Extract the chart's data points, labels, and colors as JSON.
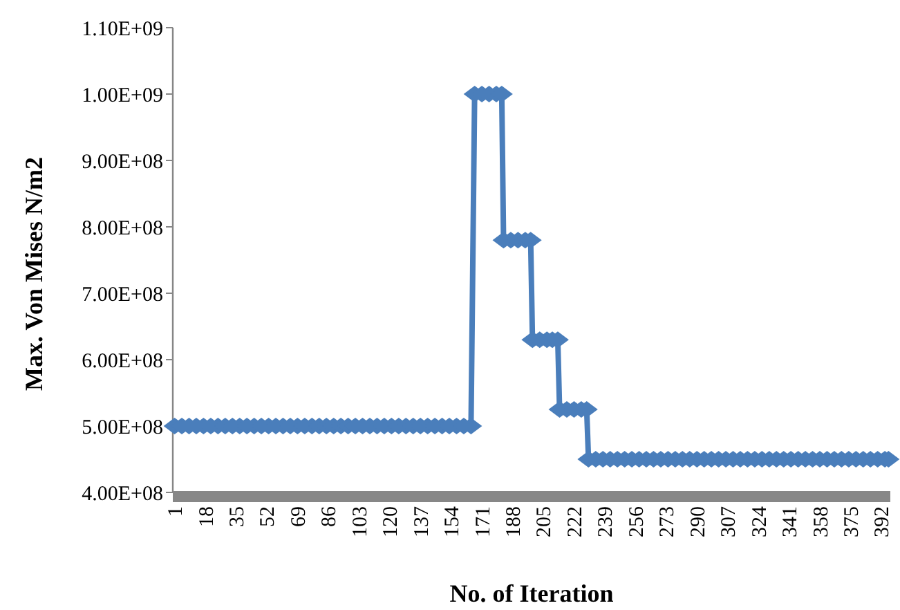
{
  "chart_data": {
    "type": "line",
    "xlabel": "No. of Iteration",
    "ylabel": "Max. Von Mises N/m2",
    "x": [
      1,
      5,
      9,
      13,
      17,
      21,
      25,
      29,
      33,
      37,
      41,
      45,
      49,
      53,
      57,
      61,
      65,
      69,
      73,
      77,
      81,
      85,
      89,
      93,
      97,
      101,
      105,
      109,
      113,
      117,
      121,
      125,
      129,
      133,
      137,
      141,
      145,
      149,
      153,
      157,
      161,
      165,
      167,
      171,
      175,
      179,
      182,
      183,
      187,
      191,
      195,
      198,
      199,
      203,
      207,
      210,
      213,
      214,
      218,
      222,
      226,
      229,
      230,
      234,
      238,
      242,
      246,
      250,
      254,
      258,
      262,
      266,
      270,
      274,
      278,
      282,
      286,
      290,
      294,
      298,
      302,
      306,
      310,
      314,
      318,
      322,
      326,
      330,
      334,
      338,
      342,
      346,
      350,
      354,
      358,
      362,
      366,
      370,
      374,
      378,
      382,
      386,
      390,
      394,
      396
    ],
    "series": [
      {
        "color": "#4a7ebb",
        "values": [
          500000000.0,
          500000000.0,
          500000000.0,
          500000000.0,
          500000000.0,
          500000000.0,
          500000000.0,
          500000000.0,
          500000000.0,
          500000000.0,
          500000000.0,
          500000000.0,
          500000000.0,
          500000000.0,
          500000000.0,
          500000000.0,
          500000000.0,
          500000000.0,
          500000000.0,
          500000000.0,
          500000000.0,
          500000000.0,
          500000000.0,
          500000000.0,
          500000000.0,
          500000000.0,
          500000000.0,
          500000000.0,
          500000000.0,
          500000000.0,
          500000000.0,
          500000000.0,
          500000000.0,
          500000000.0,
          500000000.0,
          500000000.0,
          500000000.0,
          500000000.0,
          500000000.0,
          500000000.0,
          500000000.0,
          500000000.0,
          1000000000.0,
          1000000000.0,
          1000000000.0,
          1000000000.0,
          1000000000.0,
          780000000.0,
          780000000.0,
          780000000.0,
          780000000.0,
          780000000.0,
          630000000.0,
          630000000.0,
          630000000.0,
          630000000.0,
          630000000.0,
          525000000.0,
          525000000.0,
          525000000.0,
          525000000.0,
          525000000.0,
          450000000.0,
          450000000.0,
          450000000.0,
          450000000.0,
          450000000.0,
          450000000.0,
          450000000.0,
          450000000.0,
          450000000.0,
          450000000.0,
          450000000.0,
          450000000.0,
          450000000.0,
          450000000.0,
          450000000.0,
          450000000.0,
          450000000.0,
          450000000.0,
          450000000.0,
          450000000.0,
          450000000.0,
          450000000.0,
          450000000.0,
          450000000.0,
          450000000.0,
          450000000.0,
          450000000.0,
          450000000.0,
          450000000.0,
          450000000.0,
          450000000.0,
          450000000.0,
          450000000.0,
          450000000.0,
          450000000.0,
          450000000.0,
          450000000.0,
          450000000.0,
          450000000.0,
          450000000.0,
          450000000.0,
          450000000.0,
          450000000.0
        ]
      }
    ],
    "xlim": [
      0,
      397
    ],
    "xticks": [
      1,
      18,
      35,
      52,
      69,
      86,
      103,
      120,
      137,
      154,
      171,
      188,
      205,
      222,
      239,
      256,
      273,
      290,
      307,
      324,
      341,
      358,
      375,
      392
    ],
    "ylim": [
      400000000.0,
      1100000000.0
    ],
    "yticks": [
      {
        "value": 400000000.0,
        "label": "4.00E+08"
      },
      {
        "value": 500000000.0,
        "label": "5.00E+08"
      },
      {
        "value": 600000000.0,
        "label": "6.00E+08"
      },
      {
        "value": 700000000.0,
        "label": "7.00E+08"
      },
      {
        "value": 800000000.0,
        "label": "8.00E+08"
      },
      {
        "value": 900000000.0,
        "label": "9.00E+08"
      },
      {
        "value": 1000000000.0,
        "label": "1.00E+09"
      },
      {
        "value": 1100000000.0,
        "label": "1.10E+09"
      }
    ],
    "grid": false,
    "marker": "diamond",
    "line_style": "solid"
  }
}
